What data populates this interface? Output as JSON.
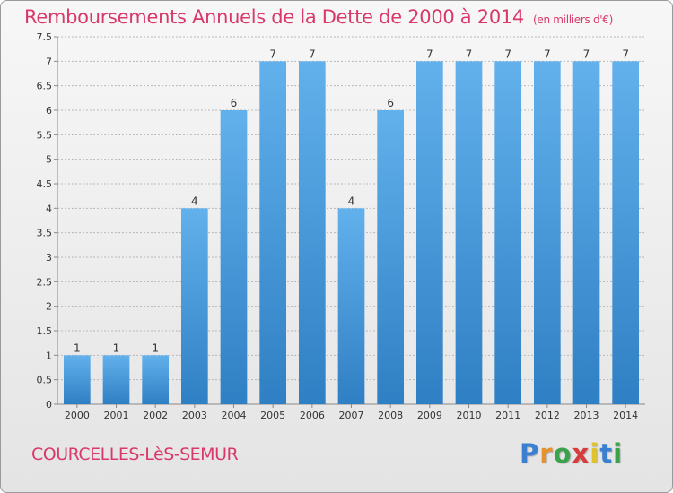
{
  "header": {
    "title": "Remboursements Annuels de la Dette de 2000 à 2014",
    "subtitle": "(en milliers d'€)"
  },
  "footer": {
    "town": "COURCELLES-LèS-SEMUR",
    "logo_text": "Proxiti"
  },
  "colors": {
    "title": "#d9396a",
    "bar_top": "#62b1ec",
    "bar_bottom": "#2f7fc4",
    "grid": "#b8b8b8"
  },
  "chart_data": {
    "type": "bar",
    "title": "Remboursements Annuels de la Dette de 2000 à 2014",
    "subtitle": "(en milliers d'€)",
    "xlabel": "",
    "ylabel": "",
    "categories": [
      "2000",
      "2001",
      "2002",
      "2003",
      "2004",
      "2005",
      "2006",
      "2007",
      "2008",
      "2009",
      "2010",
      "2011",
      "2012",
      "2013",
      "2014"
    ],
    "values": [
      1,
      1,
      1,
      4,
      6,
      7,
      7,
      4,
      6,
      7,
      7,
      7,
      7,
      7,
      7
    ],
    "data_labels": [
      "1",
      "1",
      "1",
      "4",
      "6",
      "7",
      "7",
      "4",
      "6",
      "7",
      "7",
      "7",
      "7",
      "7",
      "7"
    ],
    "yticks": [
      "0",
      "0.5",
      "1",
      "1.5",
      "2",
      "2.5",
      "3",
      "3.5",
      "4",
      "4.5",
      "5",
      "5.5",
      "6",
      "6.5",
      "7",
      "7.5"
    ],
    "ylim": [
      0,
      7.5
    ],
    "grid": true,
    "legend": "none"
  }
}
